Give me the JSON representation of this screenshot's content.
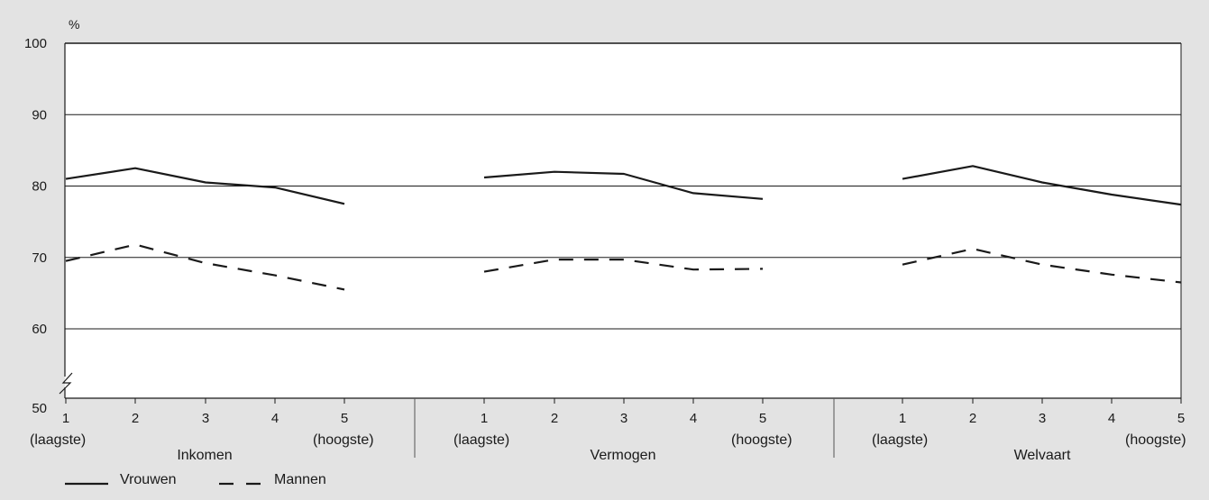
{
  "chart_data": {
    "type": "line",
    "unit_label": "%",
    "ylim": [
      50,
      100
    ],
    "y_ticks": [
      50,
      60,
      70,
      80,
      90,
      100
    ],
    "axis_break": true,
    "grid": true,
    "legend_placement": "bottom-left",
    "groups": [
      {
        "label": "Inkomen",
        "categories": [
          "1",
          "2",
          "3",
          "4",
          "5"
        ],
        "low_label": "(laagste)",
        "high_label": "(hoogste)",
        "series": [
          {
            "name": "Vrouwen",
            "values": [
              81.0,
              82.5,
              80.5,
              79.8,
              77.5
            ]
          },
          {
            "name": "Mannen",
            "values": [
              69.5,
              71.8,
              69.2,
              67.5,
              65.5
            ]
          }
        ]
      },
      {
        "label": "Vermogen",
        "categories": [
          "1",
          "2",
          "3",
          "4",
          "5"
        ],
        "low_label": "(laagste)",
        "high_label": "(hoogste)",
        "series": [
          {
            "name": "Vrouwen",
            "values": [
              81.2,
              82.0,
              81.7,
              79.0,
              78.2
            ]
          },
          {
            "name": "Mannen",
            "values": [
              68.0,
              69.7,
              69.7,
              68.3,
              68.4
            ]
          }
        ]
      },
      {
        "label": "Welvaart",
        "categories": [
          "1",
          "2",
          "3",
          "4",
          "5"
        ],
        "low_label": "(laagste)",
        "high_label": "(hoogste)",
        "series": [
          {
            "name": "Vrouwen",
            "values": [
              81.0,
              82.8,
              80.5,
              78.8,
              77.4
            ]
          },
          {
            "name": "Mannen",
            "values": [
              69.0,
              71.2,
              69.0,
              67.6,
              66.5
            ]
          }
        ]
      }
    ],
    "legend": [
      {
        "name": "Vrouwen",
        "style": "solid"
      },
      {
        "name": "Mannen",
        "style": "dashed"
      }
    ],
    "colors": {
      "line": "#1a1a1a",
      "grid": "#1a1a1a",
      "background": "#e3e3e3",
      "plot_background": "#ffffff"
    }
  }
}
